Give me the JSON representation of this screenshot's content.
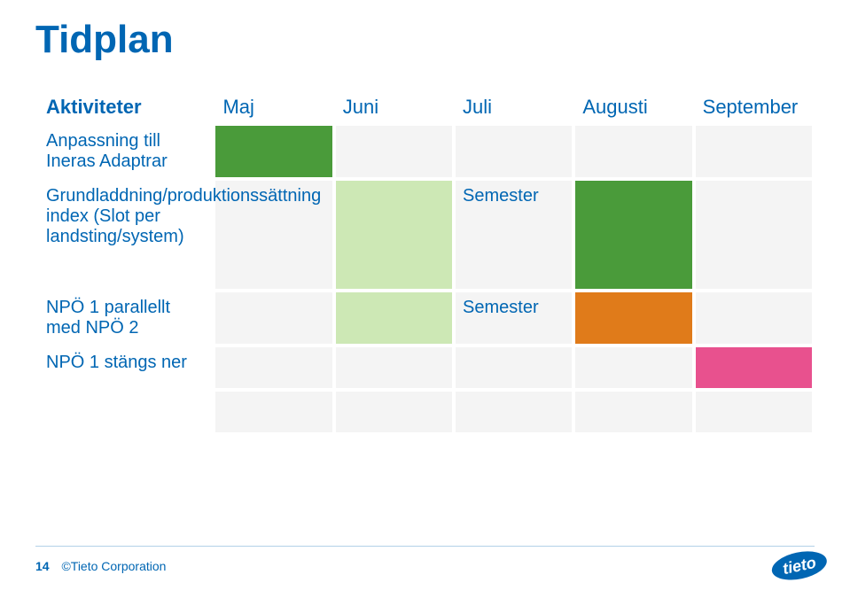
{
  "title": "Tidplan",
  "columns": {
    "activity_header": "Aktiviteter",
    "months": [
      "Maj",
      "Juni",
      "Juli",
      "Augusti",
      "September"
    ]
  },
  "colors": {
    "brand": "#0066b3",
    "cell_bg": "#f4f4f4",
    "green_dark": "#4a9b3a",
    "green_light": "#cde8b5",
    "orange": "#e07b1a",
    "pink": "#e8518e",
    "pink_light": "#f6a8c7"
  },
  "rows": [
    {
      "activity": "Anpassning till Ineras Adaptrar",
      "tall": false,
      "cells": [
        {
          "bg_key": "green_dark",
          "text": ""
        },
        {
          "bg_key": "cell_bg",
          "text": ""
        },
        {
          "bg_key": "cell_bg",
          "text": ""
        },
        {
          "bg_key": "cell_bg",
          "text": ""
        },
        {
          "bg_key": "cell_bg",
          "text": ""
        }
      ]
    },
    {
      "activity": "Grundladdning/produktionssättning index (Slot per landsting/system)",
      "tall": true,
      "cells": [
        {
          "bg_key": "cell_bg",
          "text": ""
        },
        {
          "bg_key": "green_light",
          "text": ""
        },
        {
          "bg_key": "cell_bg",
          "text": "Semester"
        },
        {
          "bg_key": "green_dark",
          "text": ""
        },
        {
          "bg_key": "cell_bg",
          "text": ""
        }
      ]
    },
    {
      "activity": "NPÖ 1 parallellt med NPÖ 2",
      "tall": false,
      "cells": [
        {
          "bg_key": "cell_bg",
          "text": ""
        },
        {
          "bg_key": "green_light",
          "text": ""
        },
        {
          "bg_key": "cell_bg",
          "text": "Semester"
        },
        {
          "bg_key": "orange",
          "text": ""
        },
        {
          "bg_key": "cell_bg",
          "text": ""
        }
      ]
    },
    {
      "activity": "NPÖ 1 stängs ner",
      "tall": false,
      "cells": [
        {
          "bg_key": "cell_bg",
          "text": ""
        },
        {
          "bg_key": "cell_bg",
          "text": ""
        },
        {
          "bg_key": "cell_bg",
          "text": ""
        },
        {
          "bg_key": "cell_bg",
          "text": ""
        },
        {
          "bg_key": "pink",
          "text": ""
        }
      ]
    },
    {
      "activity": "",
      "tall": false,
      "cells": [
        {
          "bg_key": "cell_bg",
          "text": ""
        },
        {
          "bg_key": "cell_bg",
          "text": ""
        },
        {
          "bg_key": "cell_bg",
          "text": ""
        },
        {
          "bg_key": "cell_bg",
          "text": ""
        },
        {
          "bg_key": "cell_bg",
          "text": ""
        }
      ]
    }
  ],
  "footer": {
    "page_number": "14",
    "copyright": "©Tieto Corporation"
  },
  "logo_name": "tieto"
}
